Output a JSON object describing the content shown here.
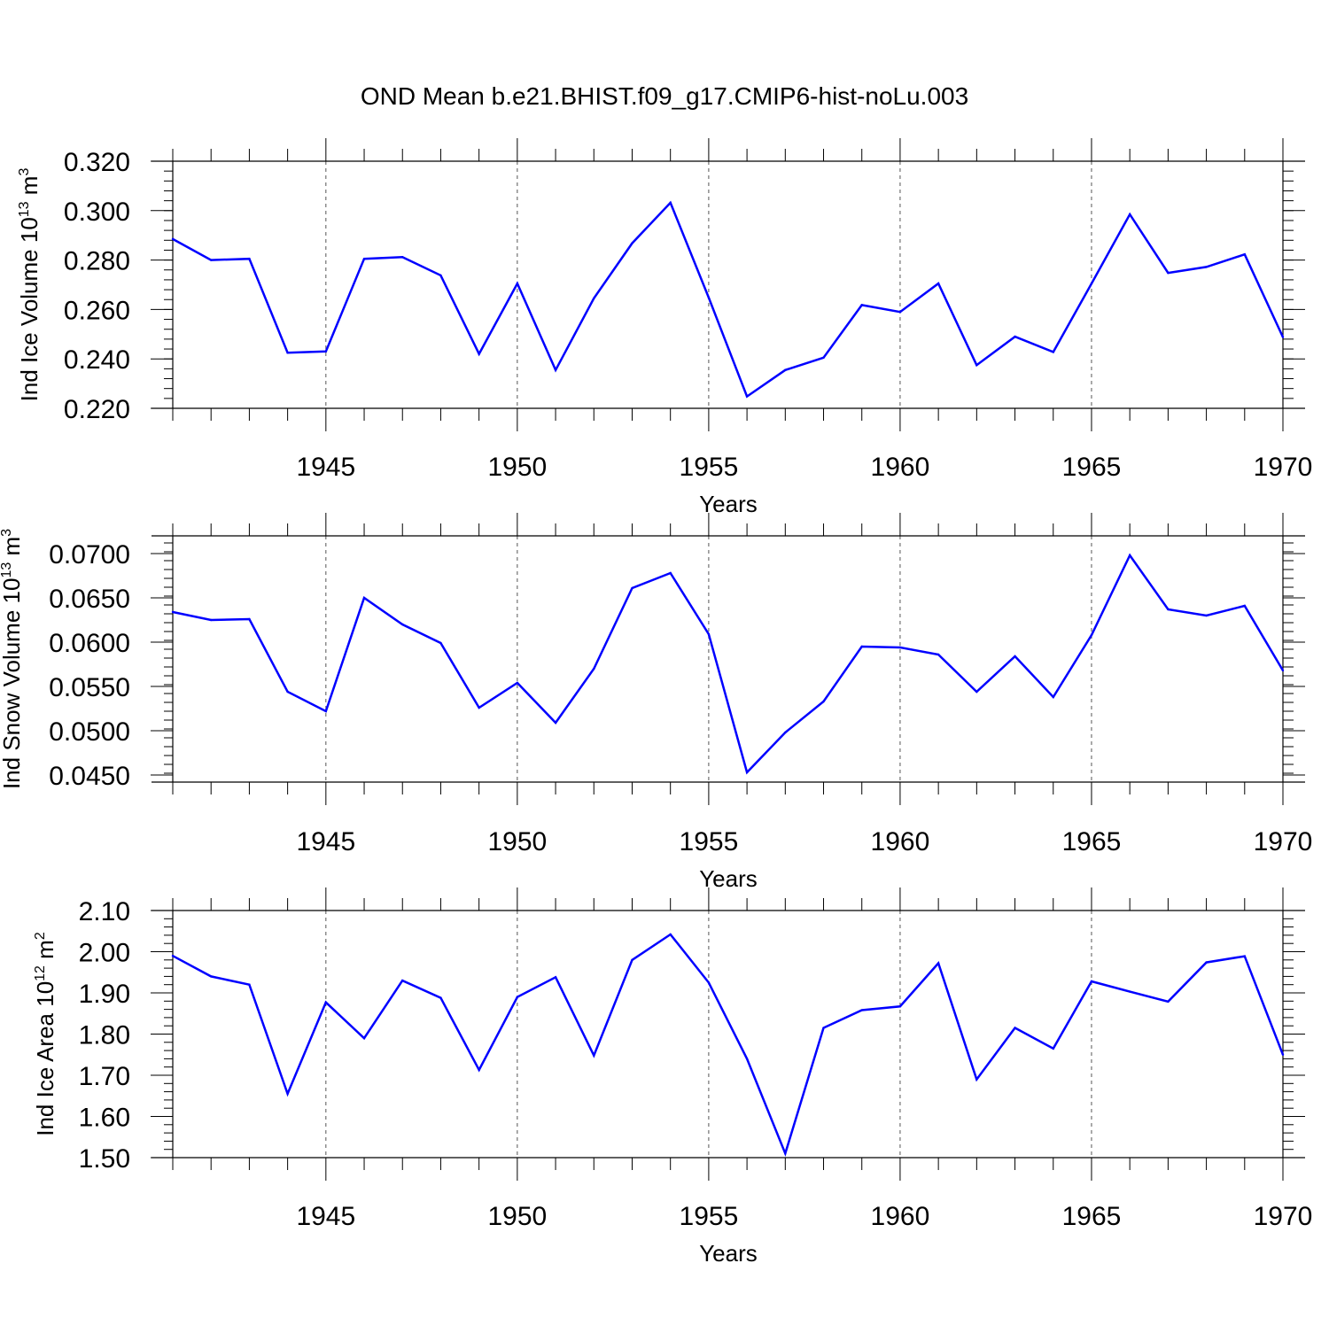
{
  "title": "OND Mean b.e21.BHIST.f09_g17.CMIP6-hist-noLu.003",
  "colors": {
    "line": "#0000ff",
    "axis": "#000000",
    "grid": "#555555"
  },
  "chart_data": [
    {
      "type": "line",
      "ylabel_main": "Ind Ice Volume 10",
      "ylabel_exp": "13",
      "ylabel_unit": " m",
      "ylabel_unit_exp": "3",
      "xlabel": "Years",
      "xlim": [
        1941,
        1970
      ],
      "ylim": [
        0.22,
        0.32
      ],
      "x_ticks": [
        1945,
        1950,
        1955,
        1960,
        1965,
        1970
      ],
      "x_tick_labels": [
        "1945",
        "1950",
        "1955",
        "1960",
        "1965",
        "1970"
      ],
      "y_ticks": [
        0.22,
        0.24,
        0.26,
        0.28,
        0.3,
        0.32
      ],
      "y_tick_labels": [
        "0.220",
        "0.240",
        "0.260",
        "0.280",
        "0.300",
        "0.320"
      ],
      "y_minor_step": 0.004,
      "x": [
        1941,
        1942,
        1943,
        1944,
        1945,
        1946,
        1947,
        1948,
        1949,
        1950,
        1951,
        1952,
        1953,
        1954,
        1955,
        1956,
        1957,
        1958,
        1959,
        1960,
        1961,
        1962,
        1963,
        1964,
        1965,
        1966,
        1967,
        1968,
        1969,
        1970
      ],
      "y": [
        0.2885,
        0.28,
        0.2805,
        0.2425,
        0.243,
        0.2805,
        0.2812,
        0.2738,
        0.242,
        0.2705,
        0.2355,
        0.2645,
        0.2868,
        0.3032,
        0.2648,
        0.2248,
        0.2355,
        0.2405,
        0.2618,
        0.259,
        0.2705,
        0.2375,
        0.249,
        0.2428,
        0.2705,
        0.2985,
        0.2748,
        0.2772,
        0.2823,
        0.2488
      ]
    },
    {
      "type": "line",
      "ylabel_main": "Ind Snow Volume 10",
      "ylabel_exp": "13",
      "ylabel_unit": " m",
      "ylabel_unit_exp": "3",
      "xlabel": "Years",
      "xlim": [
        1941,
        1970
      ],
      "ylim": [
        0.0442,
        0.072
      ],
      "x_ticks": [
        1945,
        1950,
        1955,
        1960,
        1965,
        1970
      ],
      "x_tick_labels": [
        "1945",
        "1950",
        "1955",
        "1960",
        "1965",
        "1970"
      ],
      "y_ticks": [
        0.045,
        0.05,
        0.055,
        0.06,
        0.065,
        0.07
      ],
      "y_tick_labels": [
        "0.0450",
        "0.0500",
        "0.0550",
        "0.0600",
        "0.0650",
        "0.0700"
      ],
      "y_minor_step": 0.001,
      "x": [
        1941,
        1942,
        1943,
        1944,
        1945,
        1946,
        1947,
        1948,
        1949,
        1950,
        1951,
        1952,
        1953,
        1954,
        1955,
        1956,
        1957,
        1958,
        1959,
        1960,
        1961,
        1962,
        1963,
        1964,
        1965,
        1966,
        1967,
        1968,
        1969,
        1970
      ],
      "y": [
        0.0634,
        0.0625,
        0.0626,
        0.0544,
        0.0522,
        0.065,
        0.062,
        0.0599,
        0.0526,
        0.0554,
        0.0509,
        0.057,
        0.0661,
        0.0678,
        0.0609,
        0.0453,
        0.0498,
        0.0533,
        0.0595,
        0.0594,
        0.0586,
        0.0544,
        0.0584,
        0.0538,
        0.0608,
        0.0698,
        0.0637,
        0.063,
        0.0641,
        0.0568
      ]
    },
    {
      "type": "line",
      "ylabel_main": "Ind Ice Area 10",
      "ylabel_exp": "12",
      "ylabel_unit": " m",
      "ylabel_unit_exp": "2",
      "xlabel": "Years",
      "xlim": [
        1941,
        1970
      ],
      "ylim": [
        1.5,
        2.1
      ],
      "x_ticks": [
        1945,
        1950,
        1955,
        1960,
        1965,
        1970
      ],
      "x_tick_labels": [
        "1945",
        "1950",
        "1955",
        "1960",
        "1965",
        "1970"
      ],
      "y_ticks": [
        1.5,
        1.6,
        1.7,
        1.8,
        1.9,
        2.0,
        2.1
      ],
      "y_tick_labels": [
        "1.50",
        "1.60",
        "1.70",
        "1.80",
        "1.90",
        "2.00",
        "2.10"
      ],
      "y_minor_step": 0.02,
      "x": [
        1941,
        1942,
        1943,
        1944,
        1945,
        1946,
        1947,
        1948,
        1949,
        1950,
        1951,
        1952,
        1953,
        1954,
        1955,
        1956,
        1957,
        1958,
        1959,
        1960,
        1961,
        1962,
        1963,
        1964,
        1965,
        1966,
        1967,
        1968,
        1969,
        1970
      ],
      "y": [
        1.99,
        1.94,
        1.92,
        1.655,
        1.877,
        1.79,
        1.93,
        1.888,
        1.713,
        1.89,
        1.938,
        1.748,
        1.98,
        2.042,
        1.925,
        1.74,
        1.51,
        1.815,
        1.858,
        1.867,
        1.972,
        1.69,
        1.815,
        1.765,
        1.928,
        1.903,
        1.879,
        1.974,
        1.989,
        1.75
      ]
    }
  ]
}
